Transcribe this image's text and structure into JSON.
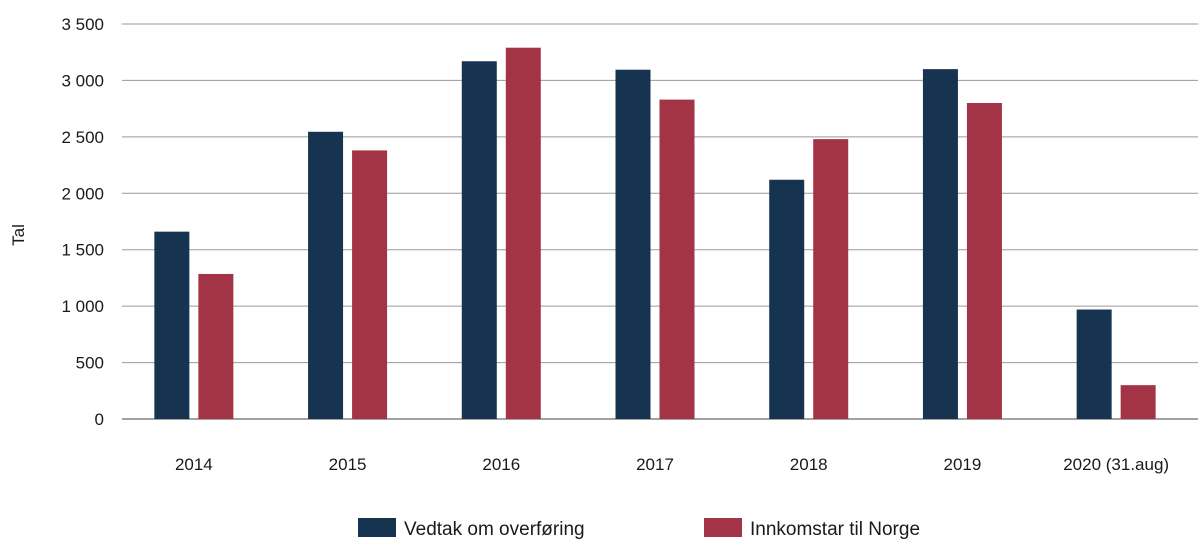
{
  "chart_data": {
    "type": "bar",
    "title": "",
    "xlabel": "",
    "ylabel": "Tal",
    "ylim": [
      0,
      3500
    ],
    "yticks": [
      0,
      500,
      1000,
      1500,
      2000,
      2500,
      3000,
      3500
    ],
    "ytick_labels": [
      "0",
      "500",
      "1 000",
      "1 500",
      "2 000",
      "2 500",
      "3 000",
      "3 500"
    ],
    "categories": [
      "2014",
      "2015",
      "2016",
      "2017",
      "2018",
      "2019",
      "2020 (31.aug)"
    ],
    "series": [
      {
        "name": "Vedtak om overføring",
        "color": "#16334f",
        "values": [
          1660,
          2545,
          3170,
          3095,
          2120,
          3100,
          970
        ]
      },
      {
        "name": "Innkomstar til Norge",
        "color": "#a33446",
        "values": [
          1285,
          2380,
          3290,
          2830,
          2480,
          2800,
          300
        ]
      }
    ],
    "grid": true,
    "legend_position": "bottom"
  }
}
